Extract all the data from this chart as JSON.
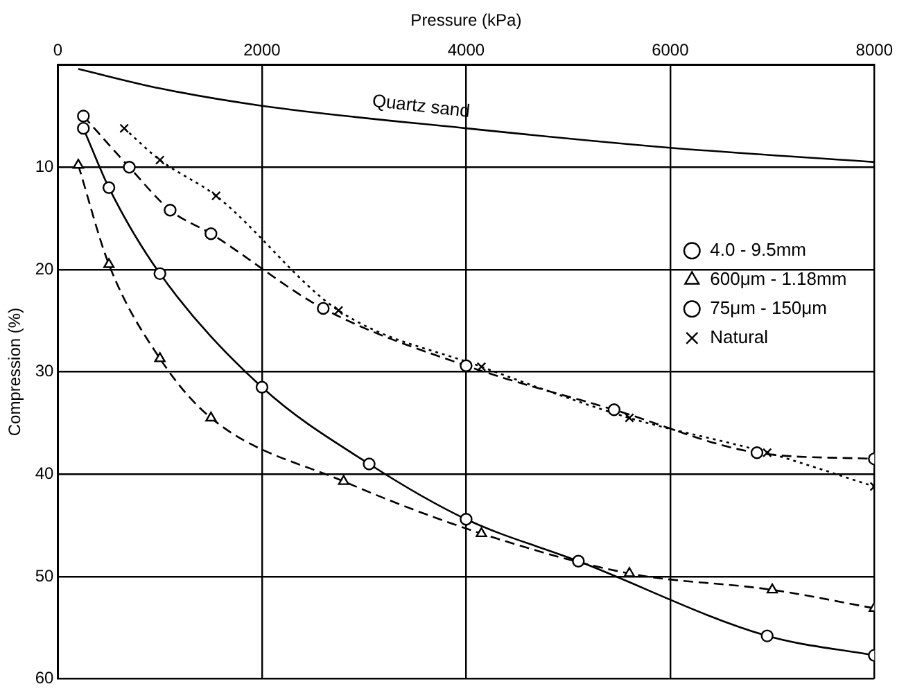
{
  "chart_data": {
    "type": "line",
    "xlabel": "Pressure (kPa)",
    "ylabel": "Compression (%)",
    "xlim": [
      0,
      8000
    ],
    "xticks": [
      0,
      2000,
      4000,
      6000,
      8000
    ],
    "ylim": [
      60,
      0
    ],
    "yticks": [
      10,
      20,
      30,
      40,
      50,
      60
    ],
    "grid": true,
    "legend": "top right",
    "series": [
      {
        "name": "Quartz sand",
        "color": "#000000",
        "marker": "none",
        "line_style": "solid",
        "x": [
          200,
          1000,
          2000,
          4000,
          6000,
          8000
        ],
        "values": [
          0.4,
          2.3,
          4,
          6.2,
          8.1,
          9.5
        ]
      },
      {
        "name": "4.0 - 9.5mm",
        "color": "#000000",
        "marker": "circle",
        "line_style": "solid",
        "x": [
          250,
          500,
          1000,
          2000,
          3050,
          4000,
          5100,
          6950,
          8000
        ],
        "values": [
          6.2,
          12,
          20.4,
          31.5,
          39,
          44.4,
          48.5,
          55.8,
          57.7
        ]
      },
      {
        "name": "600μm - 1.18mm",
        "color": "#000000",
        "marker": "triangle",
        "line_style": "dashed",
        "x": [
          200,
          500,
          1000,
          1500,
          2800,
          4150,
          5600,
          7000,
          8000
        ],
        "values": [
          9.8,
          19.5,
          28.7,
          34.5,
          40.7,
          45.8,
          49.7,
          51.3,
          53.1
        ]
      },
      {
        "name": "75μm - 150μm",
        "color": "#000000",
        "marker": "circle",
        "line_style": "dashed",
        "x": [
          250,
          700,
          1100,
          1500,
          2600,
          4000,
          5450,
          6850,
          8000
        ],
        "values": [
          5,
          10,
          14.2,
          16.5,
          23.8,
          29.4,
          33.7,
          37.9,
          38.5
        ]
      },
      {
        "name": "Natural",
        "color": "#000000",
        "marker": "cross",
        "line_style": "dotted",
        "x": [
          650,
          1000,
          1550,
          2750,
          4150,
          5600,
          6950,
          8000
        ],
        "values": [
          6.2,
          9.3,
          12.8,
          24,
          29.5,
          34.5,
          37.9,
          41.2
        ]
      }
    ]
  }
}
